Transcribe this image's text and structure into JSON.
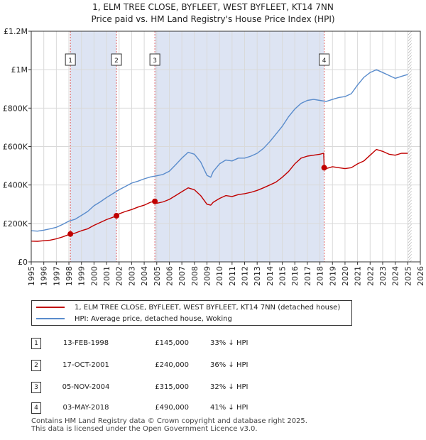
{
  "chart_data": {
    "type": "line",
    "title": "1, ELM TREE CLOSE, BYFLEET, WEST BYFLEET, KT14 7NN",
    "subtitle": "Price paid vs. HM Land Registry's House Price Index (HPI)",
    "x_ticks": [
      "1995",
      "1996",
      "1997",
      "1998",
      "1999",
      "2000",
      "2001",
      "2002",
      "2003",
      "2004",
      "2005",
      "2006",
      "2007",
      "2008",
      "2009",
      "2010",
      "2011",
      "2012",
      "2013",
      "2014",
      "2015",
      "2016",
      "2017",
      "2018",
      "2019",
      "2020",
      "2021",
      "2022",
      "2023",
      "2024",
      "2025",
      "2026"
    ],
    "y_ticks": [
      {
        "value": 0,
        "label": "£0"
      },
      {
        "value": 200000,
        "label": "£200K"
      },
      {
        "value": 400000,
        "label": "£400K"
      },
      {
        "value": 600000,
        "label": "£600K"
      },
      {
        "value": 800000,
        "label": "£800K"
      },
      {
        "value": 1000000,
        "label": "£1M"
      },
      {
        "value": 1200000,
        "label": "£1.2M"
      }
    ],
    "xlim": [
      1995,
      2026
    ],
    "ylim": [
      0,
      1200000
    ],
    "grid": true,
    "series": [
      {
        "name": "1, ELM TREE CLOSE, BYFLEET, WEST BYFLEET, KT14 7NN (detached house)",
        "color": "#c00000",
        "x": [
          1995.0,
          1995.5,
          1996.0,
          1996.5,
          1997.0,
          1997.5,
          1998.12,
          1998.5,
          1999.0,
          1999.5,
          2000.0,
          2000.5,
          2001.0,
          2001.5,
          2001.79,
          2002.0,
          2002.5,
          2003.0,
          2003.5,
          2004.0,
          2004.5,
          2004.85,
          2005.0,
          2005.5,
          2006.0,
          2006.5,
          2007.0,
          2007.5,
          2008.0,
          2008.5,
          2009.0,
          2009.3,
          2009.5,
          2010.0,
          2010.5,
          2011.0,
          2011.5,
          2012.0,
          2012.5,
          2013.0,
          2013.5,
          2014.0,
          2014.5,
          2015.0,
          2015.5,
          2016.0,
          2016.5,
          2017.0,
          2017.5,
          2018.0,
          2018.3,
          2018.34,
          2018.5,
          2019.0,
          2019.5,
          2020.0,
          2020.5,
          2021.0,
          2021.5,
          2022.0,
          2022.5,
          2023.0,
          2023.5,
          2024.0,
          2024.5,
          2025.0
        ],
        "values": [
          108000,
          107000,
          110000,
          113000,
          120000,
          130000,
          145000,
          150000,
          162000,
          172000,
          190000,
          205000,
          220000,
          232000,
          240000,
          250000,
          262000,
          272000,
          285000,
          295000,
          310000,
          315000,
          305000,
          312000,
          325000,
          345000,
          365000,
          385000,
          375000,
          345000,
          300000,
          295000,
          310000,
          330000,
          345000,
          340000,
          350000,
          355000,
          362000,
          372000,
          385000,
          400000,
          415000,
          440000,
          470000,
          510000,
          540000,
          550000,
          555000,
          560000,
          565000,
          490000,
          485000,
          495000,
          490000,
          485000,
          490000,
          510000,
          525000,
          555000,
          585000,
          575000,
          560000,
          555000,
          565000,
          565000
        ]
      },
      {
        "name": "HPI: Average price, detached house, Woking",
        "color": "#5a8ccc",
        "x": [
          1995.0,
          1995.5,
          1996.0,
          1996.5,
          1997.0,
          1997.5,
          1998.0,
          1998.5,
          1999.0,
          1999.5,
          2000.0,
          2000.5,
          2001.0,
          2001.5,
          2002.0,
          2002.5,
          2003.0,
          2003.5,
          2004.0,
          2004.5,
          2005.0,
          2005.5,
          2006.0,
          2006.5,
          2007.0,
          2007.5,
          2008.0,
          2008.5,
          2009.0,
          2009.3,
          2009.5,
          2010.0,
          2010.5,
          2011.0,
          2011.5,
          2012.0,
          2012.5,
          2013.0,
          2013.5,
          2014.0,
          2014.5,
          2015.0,
          2015.5,
          2016.0,
          2016.5,
          2017.0,
          2017.5,
          2018.0,
          2018.5,
          2019.0,
          2019.5,
          2020.0,
          2020.5,
          2021.0,
          2021.5,
          2022.0,
          2022.5,
          2023.0,
          2023.5,
          2024.0,
          2024.5,
          2025.0
        ],
        "values": [
          162000,
          160000,
          165000,
          172000,
          180000,
          195000,
          212000,
          222000,
          242000,
          262000,
          292000,
          312000,
          335000,
          355000,
          375000,
          392000,
          410000,
          420000,
          432000,
          442000,
          448000,
          455000,
          472000,
          505000,
          540000,
          570000,
          560000,
          520000,
          450000,
          440000,
          470000,
          510000,
          530000,
          525000,
          540000,
          540000,
          550000,
          565000,
          590000,
          625000,
          665000,
          705000,
          755000,
          795000,
          825000,
          840000,
          845000,
          840000,
          835000,
          845000,
          855000,
          860000,
          875000,
          920000,
          960000,
          985000,
          1000000,
          985000,
          970000,
          955000,
          965000,
          975000
        ]
      }
    ],
    "transactions": [
      {
        "label": "1",
        "x": 1998.12,
        "y": 145000
      },
      {
        "label": "2",
        "x": 2001.79,
        "y": 240000
      },
      {
        "label": "3",
        "x": 2004.85,
        "y": 315000
      },
      {
        "label": "4",
        "x": 2018.34,
        "y": 490000
      }
    ],
    "shaded_ranges": [
      [
        1998.12,
        2001.79
      ],
      [
        2004.85,
        2018.34
      ]
    ],
    "forecast_start": 2025.0
  },
  "legend": {
    "property": "1, ELM TREE CLOSE, BYFLEET, WEST BYFLEET, KT14 7NN (detached house)",
    "hpi": "HPI: Average price, detached house, Woking"
  },
  "table": [
    {
      "num": "1",
      "date": "13-FEB-1998",
      "price": "£145,000",
      "hpi": "33% ↓ HPI"
    },
    {
      "num": "2",
      "date": "17-OCT-2001",
      "price": "£240,000",
      "hpi": "36% ↓ HPI"
    },
    {
      "num": "3",
      "date": "05-NOV-2004",
      "price": "£315,000",
      "hpi": "32% ↓ HPI"
    },
    {
      "num": "4",
      "date": "03-MAY-2018",
      "price": "£490,000",
      "hpi": "41% ↓ HPI"
    }
  ],
  "footer": {
    "line1": "Contains HM Land Registry data © Crown copyright and database right 2025.",
    "line2": "This data is licensed under the Open Government Licence v3.0."
  }
}
